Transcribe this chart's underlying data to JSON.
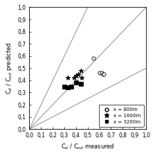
{
  "title": "",
  "xlabel": "C$_d$ / C$_{od}$ measured",
  "ylabel": "C$_d$ / C$_{od}$ predicted",
  "xlim": [
    0.0,
    1.0
  ],
  "ylim": [
    0.0,
    1.0
  ],
  "xticks": [
    0.0,
    0.1,
    0.2,
    0.3,
    0.4,
    0.5,
    0.6,
    0.7,
    0.8,
    0.9,
    1.0
  ],
  "yticks": [
    0.0,
    0.1,
    0.2,
    0.3,
    0.4,
    0.5,
    0.6,
    0.7,
    0.8,
    0.9,
    1.0
  ],
  "line1": {
    "slope": 1.0,
    "color": "#999999"
  },
  "line2": {
    "slope": 2.0,
    "color": "#999999"
  },
  "line3": {
    "slope": 0.5,
    "color": "#999999"
  },
  "scatter_800m": {
    "x": [
      0.55,
      0.6,
      0.62,
      0.63,
      0.64
    ],
    "y": [
      0.58,
      0.46,
      0.46,
      0.45,
      0.45
    ],
    "marker": "o",
    "facecolor": "white",
    "edgecolor": "black",
    "size": 14,
    "label": "x = 800m"
  },
  "scatter_1600m": {
    "x": [
      0.33,
      0.38,
      0.4,
      0.42,
      0.44,
      0.45
    ],
    "y": [
      0.42,
      0.42,
      0.44,
      0.45,
      0.48,
      0.42
    ],
    "marker": "*",
    "facecolor": "black",
    "edgecolor": "black",
    "size": 25,
    "label": "x = 1600m"
  },
  "scatter_3200m": {
    "x": [
      0.3,
      0.33,
      0.36,
      0.4,
      0.44
    ],
    "y": [
      0.35,
      0.34,
      0.35,
      0.38,
      0.37
    ],
    "marker": "s",
    "facecolor": "black",
    "edgecolor": "black",
    "size": 14,
    "label": "x = 3200m"
  },
  "background_color": "white",
  "tick_label_fontsize": 5.5
}
